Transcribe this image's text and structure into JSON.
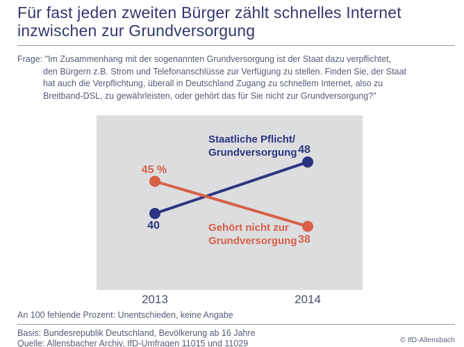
{
  "title": {
    "lines": [
      "Für fast jeden zweiten Bürger zählt schnelles Internet",
      "inzwischen zur Grundversorgung"
    ]
  },
  "question": {
    "lines": [
      "Frage: \"Im Zusammenhang mit der sogenannten Grundversorgung ist der Staat dazu verpflichtet,",
      "den Bürgern z.B. Strom und Telefonanschlüsse zur Verfügung zu stellen. Finden Sie, der Staat",
      "hat auch die Verpflichtung, überall in Deutschland Zugang zu schnellem Internet, also zu",
      "Breitband-DSL, zu gewährleisten, oder gehört das für Sie nicht zur Grundversorgung?\""
    ]
  },
  "chart_data": {
    "type": "line",
    "categories": [
      "2013",
      "2014"
    ],
    "series": [
      {
        "name": "Staatliche Pflicht/Grundversorgung",
        "label_lines": [
          "Staatliche Pflicht/",
          "Grundversorgung"
        ],
        "values": [
          40,
          48
        ],
        "point_labels": [
          "40",
          "48"
        ],
        "color": "#2b3480"
      },
      {
        "name": "Gehört nicht zur Grundversorgung",
        "label_lines": [
          "Gehört nicht zur",
          "Grundversorgung"
        ],
        "values": [
          45,
          38
        ],
        "point_labels": [
          "45 %",
          "38"
        ],
        "color": "#d85f48"
      }
    ],
    "unit": "%",
    "ylim": [
      30,
      55
    ],
    "grid": false,
    "plot_background": "#dcdddf",
    "legend_position": "inline-labels"
  },
  "footnote": "An 100 fehlende Prozent: Unentschieden, keine Angabe",
  "footer": {
    "basis": "Basis: Bundesrepublik Deutschland, Bevölkerung ab 16 Jahre",
    "quelle": "Quelle: Allensbacher Archiv, IfD-Umfragen 11015 und 11029",
    "copyright": "© IfD-Allensbach"
  },
  "colors": {
    "title_text": "#31386b",
    "body_text": "#545b76",
    "axis_label": "#494f6b",
    "divider": "#9296a8"
  }
}
